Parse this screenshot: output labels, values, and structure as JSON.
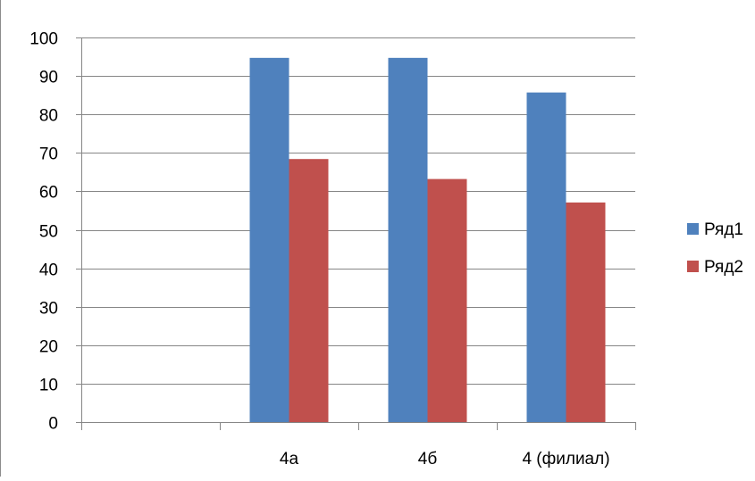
{
  "chart_data": {
    "type": "bar",
    "title": "",
    "xlabel": "",
    "ylabel": "",
    "categories": [
      "",
      "4а",
      "4б",
      "4 (филиал)"
    ],
    "series": [
      {
        "name": "Ряд1",
        "values": [
          null,
          94.7,
          94.7,
          85.7
        ]
      },
      {
        "name": "Ряд2",
        "values": [
          null,
          68.4,
          63.2,
          57.1
        ]
      }
    ],
    "ylim": [
      0,
      100
    ],
    "yticks": [
      "0",
      "10",
      "20",
      "30",
      "40",
      "50",
      "60",
      "70",
      "80",
      "90",
      "100"
    ],
    "grid": true,
    "legend_position": "right",
    "colors": {
      "series": [
        "#4f81bd",
        "#c0504d"
      ],
      "grid": "#868686",
      "axis": "#868686"
    }
  }
}
